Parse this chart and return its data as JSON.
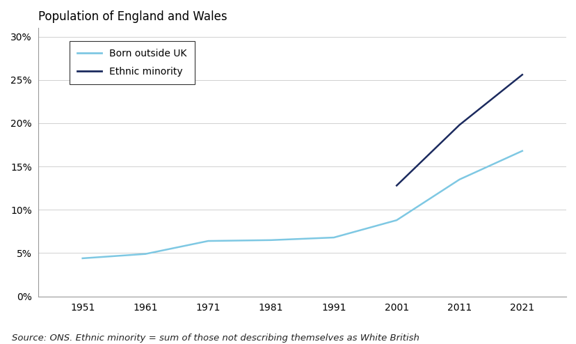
{
  "title": "Population of England and Wales",
  "source_text": "Source: ONS. Ethnic minority = sum of those not describing themselves as White British",
  "born_outside_uk": {
    "years": [
      1951,
      1961,
      1971,
      1981,
      1991,
      2001,
      2011,
      2021
    ],
    "values": [
      0.044,
      0.049,
      0.064,
      0.065,
      0.068,
      0.088,
      0.135,
      0.168
    ],
    "color": "#7ec8e3",
    "label": "Born outside UK",
    "linewidth": 1.8
  },
  "ethnic_minority": {
    "years": [
      2001,
      2011,
      2021
    ],
    "values": [
      0.128,
      0.198,
      0.256
    ],
    "color": "#1b2a5e",
    "label": "Ethnic minority",
    "linewidth": 1.8
  },
  "ylim": [
    0,
    0.31
  ],
  "yticks": [
    0.0,
    0.05,
    0.1,
    0.15,
    0.2,
    0.25,
    0.3
  ],
  "xticks": [
    1951,
    1961,
    1971,
    1981,
    1991,
    2001,
    2011,
    2021
  ],
  "xlim": [
    1944,
    2028
  ],
  "background_color": "#ffffff",
  "plot_bg_color": "#ffffff",
  "grid_color": "#d0d0d0",
  "title_fontsize": 12,
  "tick_fontsize": 10,
  "source_fontsize": 9.5,
  "legend_fontsize": 10
}
